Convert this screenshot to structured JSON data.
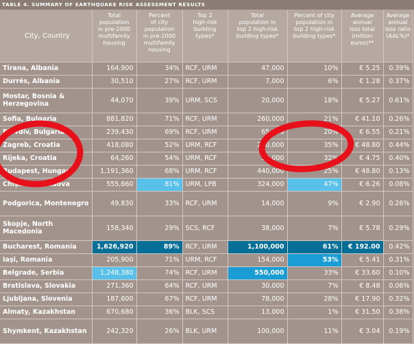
{
  "caption": "TABLE 4. SUMMARY OF EARTHQUAKE RISK ASSESSMENT RESULTS",
  "headers": [
    "City, Country",
    "Total\npopulation\nin pre-2000\nmultifamily\nhousing",
    "Percent\nof city\npopulation\nin pre-2000\nmultifamily\nhousing",
    "Top 2\nhigh-risk\nbuilding\ntypes*",
    "Total\npopulation in\ntop 2 high-risk\nbuilding types*",
    "Percent of city\npopulation in\ntop 2 high-risk\nbuilding types*",
    "Average\nannual\nloss total\n(million\neuros)**",
    "Average\nannual\nloss ratio\n(AAL%)*"
  ],
  "rows": [
    {
      "city": "Tirana, Albania",
      "pop": "164,900",
      "pct": "34%",
      "types": "RCF, URM",
      "top2": "47,000",
      "top2pct": "10%",
      "aal": "€ 5.25",
      "ratio": "0.39%"
    },
    {
      "city": "Durrës, Albania",
      "pop": "30,510",
      "pct": "27%",
      "types": "RCF, URM",
      "top2": "7,000",
      "top2pct": "6%",
      "aal": "€ 1.28",
      "ratio": "0.37%"
    },
    {
      "city": "Mostar, Bosnia & Herzegovina",
      "pop": "44,070",
      "pct": "39%",
      "types": "URM, SCS",
      "top2": "20,000",
      "top2pct": "18%",
      "aal": "€ 5.27",
      "ratio": "0.61%"
    },
    {
      "city": "Sofia, Bulgaria",
      "pop": "881,820",
      "pct": "71%",
      "types": "RCF, URM",
      "top2": "260,000",
      "top2pct": "21%",
      "aal": "€ 41.10",
      "ratio": "0.26%"
    },
    {
      "city": "Plovdiv, Bulgaria",
      "pop": "239,430",
      "pct": "69%",
      "types": "RCF, URM",
      "top2": "65,000",
      "top2pct": "20%",
      "aal": "€ 6.55",
      "ratio": "0.21%"
    },
    {
      "city": "Zagreb, Croatia",
      "pop": "418,080",
      "pct": "52%",
      "types": "URM, RCF",
      "top2": "280,000",
      "top2pct": "35%",
      "aal": "€ 48.80",
      "ratio": "0.44%"
    },
    {
      "city": "Rijeka, Croatia",
      "pop": "64,260",
      "pct": "54%",
      "types": "URM, RCF",
      "top2": "38,000",
      "top2pct": "32%",
      "aal": "€ 4.75",
      "ratio": "0.40%"
    },
    {
      "city": "Budapest, Hungary",
      "pop": "1,191,360",
      "pct": "68%",
      "types": "URM, RCF",
      "top2": "440,000",
      "top2pct": "25%",
      "aal": "€ 48.80",
      "ratio": "0.13%"
    },
    {
      "city": "Chișinău, Moldova",
      "pop": "555,660",
      "pct": "81%",
      "types": "URM, LPB",
      "top2": "324,000",
      "top2pct": "47%",
      "aal": "€ 6.26",
      "ratio": "0.08%"
    },
    {
      "city": "Podgorica, Montenegro",
      "pop": "49,830",
      "pct": "33%",
      "types": "RCF, URM",
      "top2": "14,000",
      "top2pct": "9%",
      "aal": "€ 2.90",
      "ratio": "0.26%"
    },
    {
      "city": "Skopje, North Macedonia",
      "pop": "158,340",
      "pct": "29%",
      "types": "SCS, RCF",
      "top2": "38,000",
      "top2pct": "7%",
      "aal": "€ 5.78",
      "ratio": "0.29%"
    },
    {
      "city": "Bucharest, Romania",
      "pop": "1,626,920",
      "pct": "89%",
      "types": "RCF, URM",
      "top2": "1,100,000",
      "top2pct": "61%",
      "aal": "€ 192.00",
      "ratio": "0.42%"
    },
    {
      "city": "Iași, Romania",
      "pop": "205,900",
      "pct": "71%",
      "types": "URM, RCF",
      "top2": "154,000",
      "top2pct": "53%",
      "aal": "€ 5.41",
      "ratio": "0.31%"
    },
    {
      "city": "Belgrade, Serbia",
      "pop": "1,248,380",
      "pct": "74%",
      "types": "RCF, URM",
      "top2": "550,000",
      "top2pct": "33%",
      "aal": "€ 33.60",
      "ratio": "0.10%"
    },
    {
      "city": "Bratislava, Slovakia",
      "pop": "271,360",
      "pct": "64%",
      "types": "RCF, URM",
      "top2": "30,000",
      "top2pct": "7%",
      "aal": "€ 8.48",
      "ratio": "0.06%"
    },
    {
      "city": "Ljubljana, Slovenia",
      "pop": "187,600",
      "pct": "67%",
      "types": "RCF, URM",
      "top2": "78,000",
      "top2pct": "28%",
      "aal": "€ 17.90",
      "ratio": "0.32%"
    },
    {
      "city": "Almaty, Kazakhstan",
      "pop": "670,680",
      "pct": "36%",
      "types": "BLK, SCS",
      "top2": "13,000",
      "top2pct": "1%",
      "aal": "€ 31.50",
      "ratio": "0.38%"
    },
    {
      "city": "Shymkent, Kazakhstan",
      "pop": "242,320",
      "pct": "26%",
      "types": "BLK, URM",
      "top2": "100,000",
      "top2pct": "11%",
      "aal": "€ 3.04",
      "ratio": "0.19%"
    }
  ],
  "colors": {
    "background": "#a2948d",
    "header": "#b6a9a2",
    "highlight_dark": "#066f98",
    "highlight_mid": "#1a9dd4",
    "highlight_light": "#59c0ea",
    "annotation_red": "#e8101a"
  }
}
